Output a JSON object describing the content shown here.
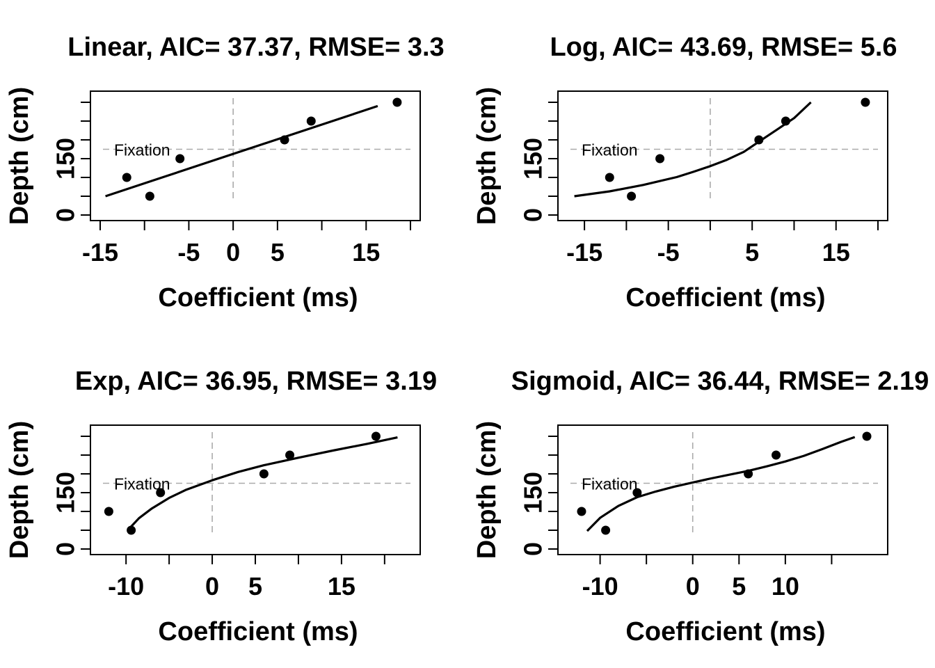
{
  "chart_data": [
    {
      "type": "scatter",
      "title": "Linear, AIC= 37.37, RMSE= 3.3",
      "xlabel": "Coefficient (ms)",
      "ylabel": "Depth (cm)",
      "xlim": [
        -15,
        20
      ],
      "ylim": [
        0,
        300
      ],
      "xticks": [
        -15,
        -10,
        -5,
        0,
        5,
        10,
        15,
        20
      ],
      "xticklabels": [
        "-15",
        "",
        "-5",
        "0",
        "5",
        "",
        "15",
        ""
      ],
      "yticks": [
        0,
        50,
        100,
        150,
        200,
        250,
        300
      ],
      "yticklabels": [
        "0",
        "",
        "",
        "150",
        "",
        "",
        ""
      ],
      "annotation": "Fixation",
      "fixation_depth": 175,
      "points": [
        {
          "x": -12,
          "y": 100
        },
        {
          "x": -9.4,
          "y": 50
        },
        {
          "x": -6,
          "y": 150
        },
        {
          "x": 5.8,
          "y": 200
        },
        {
          "x": 8.8,
          "y": 250
        },
        {
          "x": 18.5,
          "y": 300
        }
      ],
      "fit_line": {
        "x": [
          -14.4,
          16.3
        ],
        "y": [
          50,
          290
        ]
      }
    },
    {
      "type": "scatter",
      "title": "Log, AIC= 43.69, RMSE= 5.6",
      "xlabel": "Coefficient (ms)",
      "ylabel": "Depth (cm)",
      "xlim": [
        -17,
        20
      ],
      "ylim": [
        0,
        300
      ],
      "xticks": [
        -15,
        -10,
        -5,
        0,
        5,
        10,
        15,
        20
      ],
      "xticklabels": [
        "-15",
        "",
        "-5",
        "",
        "5",
        "",
        "15",
        ""
      ],
      "yticks": [
        0,
        50,
        100,
        150,
        200,
        250,
        300
      ],
      "yticklabels": [
        "0",
        "",
        "",
        "150",
        "",
        "",
        ""
      ],
      "annotation": "Fixation",
      "fixation_depth": 175,
      "points": [
        {
          "x": -12,
          "y": 100
        },
        {
          "x": -9.4,
          "y": 50
        },
        {
          "x": -6,
          "y": 150
        },
        {
          "x": 5.8,
          "y": 200
        },
        {
          "x": 9,
          "y": 250
        },
        {
          "x": 18.5,
          "y": 300
        }
      ],
      "fit_line": {
        "x": [
          -16.2,
          -12,
          -8,
          -4,
          -2,
          0,
          2,
          4,
          6,
          8,
          10,
          12
        ],
        "y": [
          50,
          63,
          80,
          101,
          115,
          130,
          147,
          168,
          198,
          228,
          258,
          300
        ]
      }
    },
    {
      "type": "scatter",
      "title": "Exp, AIC= 36.95, RMSE= 3.19",
      "xlabel": "Coefficient (ms)",
      "ylabel": "Depth (cm)",
      "xlim": [
        -13,
        23
      ],
      "ylim": [
        0,
        300
      ],
      "xticks": [
        -10,
        -5,
        0,
        5,
        10,
        15,
        20
      ],
      "xticklabels": [
        "-10",
        "",
        "0",
        "5",
        "",
        "15",
        ""
      ],
      "yticks": [
        0,
        50,
        100,
        150,
        200,
        250,
        300
      ],
      "yticklabels": [
        "0",
        "",
        "",
        "150",
        "",
        "",
        ""
      ],
      "annotation": "Fixation",
      "fixation_depth": 175,
      "points": [
        {
          "x": -12,
          "y": 100
        },
        {
          "x": -9.4,
          "y": 50
        },
        {
          "x": -6,
          "y": 150
        },
        {
          "x": 6,
          "y": 200
        },
        {
          "x": 9,
          "y": 250
        },
        {
          "x": 19,
          "y": 300
        }
      ],
      "fit_line": {
        "x": [
          -9.8,
          -8.5,
          -7,
          -5,
          -3,
          0,
          3,
          6,
          10,
          14,
          18,
          21.5
        ],
        "y": [
          50,
          82,
          108,
          136,
          158,
          183,
          205,
          223,
          243,
          262,
          280,
          297
        ]
      }
    },
    {
      "type": "scatter",
      "title": "Sigmoid, AIC= 36.44, RMSE= 2.19",
      "xlabel": "Coefficient (ms)",
      "ylabel": "Depth (cm)",
      "xlim": [
        -13.5,
        20
      ],
      "ylim": [
        0,
        300
      ],
      "xticks": [
        -10,
        -5,
        0,
        5,
        10,
        15
      ],
      "xticklabels": [
        "-10",
        "",
        "0",
        "5",
        "10",
        ""
      ],
      "yticks": [
        0,
        50,
        100,
        150,
        200,
        250,
        300
      ],
      "yticklabels": [
        "0",
        "",
        "",
        "150",
        "",
        "",
        ""
      ],
      "annotation": "Fixation",
      "fixation_depth": 175,
      "points": [
        {
          "x": -12,
          "y": 100
        },
        {
          "x": -9.4,
          "y": 50
        },
        {
          "x": -6,
          "y": 150
        },
        {
          "x": 6,
          "y": 200
        },
        {
          "x": 9,
          "y": 250
        },
        {
          "x": 18.8,
          "y": 300
        }
      ],
      "fit_line": {
        "x": [
          -11.4,
          -10,
          -8,
          -6,
          -4,
          -2,
          0,
          2,
          4,
          6,
          8,
          10,
          12,
          14,
          16,
          17.5
        ],
        "y": [
          48,
          83,
          115,
          138,
          153,
          166,
          177,
          188,
          198,
          208,
          220,
          233,
          248,
          266,
          285,
          298
        ]
      }
    }
  ]
}
